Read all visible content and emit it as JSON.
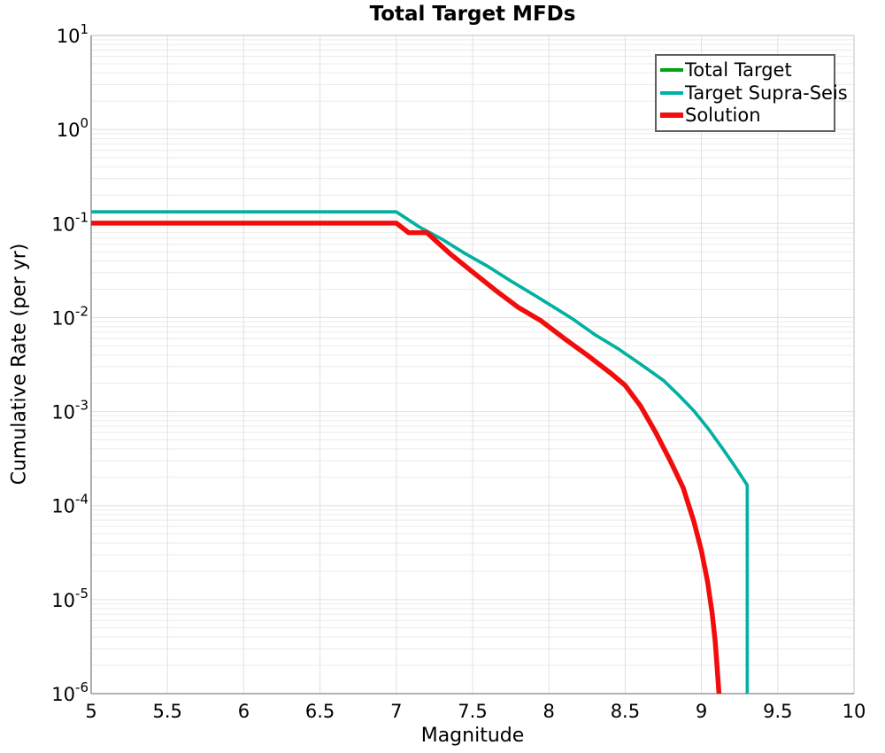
{
  "figure": {
    "title": "Total Target MFDs",
    "xlabel": "Magnitude",
    "ylabel": "Cumulative Rate (per yr)"
  },
  "axes": {
    "x_tick_values": [
      5,
      5.5,
      6,
      6.5,
      7,
      7.5,
      8,
      8.5,
      9,
      9.5,
      10
    ],
    "x_tick_labels": [
      "5",
      "5.5",
      "6",
      "6.5",
      "7",
      "7.5",
      "8",
      "8.5",
      "9",
      "9.5",
      "10"
    ],
    "y_tick_base": "10",
    "y_tick_exponents": [
      "1",
      "0",
      "-1",
      "-2",
      "-3",
      "-4",
      "-5",
      "-6"
    ],
    "x_range": [
      5,
      10
    ],
    "y_range": [
      1e-06,
      10
    ]
  },
  "legend": {
    "items": [
      {
        "label": "Total Target",
        "color": "#00a513",
        "swatch_height": 4
      },
      {
        "label": "Target Supra-Seis",
        "color": "#00b1a7",
        "swatch_height": 4
      },
      {
        "label": "Solution",
        "color": "#f20c0c",
        "swatch_height": 6
      }
    ]
  },
  "colors": {
    "grid_minor": "#ebebeb",
    "grid_major": "#e0e0e0",
    "spine_main": "#9a9a9a",
    "spine_light": "#cccccc",
    "text": "#000000"
  },
  "chart_data": {
    "type": "line",
    "title": "Total Target MFDs",
    "xlabel": "Magnitude",
    "ylabel": "Cumulative Rate (per yr)",
    "x_scale": "linear",
    "y_scale": "log",
    "xlim": [
      5,
      10
    ],
    "ylim": [
      1e-06,
      10
    ],
    "grid": "both axes, light gray, major and minor log gridlines",
    "legend_position": "upper right",
    "series": [
      {
        "name": "Total Target",
        "color": "#00a513",
        "line_width": 3.5,
        "note": "identical to Target Supra-Seis curve, hidden beneath it",
        "points": [
          [
            5.0,
            0.133
          ],
          [
            7.0,
            0.133
          ],
          [
            7.15,
            0.092
          ],
          [
            7.3,
            0.068
          ],
          [
            7.45,
            0.048
          ],
          [
            7.6,
            0.035
          ],
          [
            7.75,
            0.0245
          ],
          [
            7.9,
            0.0175
          ],
          [
            8.0,
            0.0139
          ],
          [
            8.15,
            0.0098
          ],
          [
            8.3,
            0.0066
          ],
          [
            8.45,
            0.0047
          ],
          [
            8.6,
            0.0032
          ],
          [
            8.75,
            0.00215
          ],
          [
            8.85,
            0.0015
          ],
          [
            8.95,
            0.00102
          ],
          [
            9.05,
            0.00064
          ],
          [
            9.15,
            0.00038
          ],
          [
            9.22,
            0.00026
          ],
          [
            9.28,
            0.000185
          ],
          [
            9.3,
            0.000165
          ],
          [
            9.3,
            1e-06
          ]
        ]
      },
      {
        "name": "Target Supra-Seis",
        "color": "#00b1a7",
        "line_width": 3.5,
        "points": [
          [
            5.0,
            0.133
          ],
          [
            7.0,
            0.133
          ],
          [
            7.15,
            0.092
          ],
          [
            7.3,
            0.068
          ],
          [
            7.45,
            0.048
          ],
          [
            7.6,
            0.035
          ],
          [
            7.75,
            0.0245
          ],
          [
            7.9,
            0.0175
          ],
          [
            8.0,
            0.0139
          ],
          [
            8.15,
            0.0098
          ],
          [
            8.3,
            0.0066
          ],
          [
            8.45,
            0.0047
          ],
          [
            8.6,
            0.0032
          ],
          [
            8.75,
            0.00215
          ],
          [
            8.85,
            0.0015
          ],
          [
            8.95,
            0.00102
          ],
          [
            9.05,
            0.00064
          ],
          [
            9.15,
            0.00038
          ],
          [
            9.22,
            0.00026
          ],
          [
            9.28,
            0.000185
          ],
          [
            9.3,
            0.000165
          ],
          [
            9.3,
            1e-06
          ]
        ]
      },
      {
        "name": "Solution",
        "color": "#f20c0c",
        "line_width": 5.5,
        "points": [
          [
            5.0,
            0.101
          ],
          [
            7.0,
            0.101
          ],
          [
            7.08,
            0.08
          ],
          [
            7.2,
            0.08
          ],
          [
            7.35,
            0.048
          ],
          [
            7.5,
            0.0305
          ],
          [
            7.65,
            0.0195
          ],
          [
            7.8,
            0.0128
          ],
          [
            7.95,
            0.0092
          ],
          [
            8.1,
            0.006
          ],
          [
            8.25,
            0.004
          ],
          [
            8.4,
            0.0026
          ],
          [
            8.5,
            0.0019
          ],
          [
            8.6,
            0.00115
          ],
          [
            8.7,
            0.0006
          ],
          [
            8.8,
            0.00029
          ],
          [
            8.88,
            0.000155
          ],
          [
            8.95,
            6.8e-05
          ],
          [
            9.0,
            3.3e-05
          ],
          [
            9.04,
            1.55e-05
          ],
          [
            9.07,
            7.2e-06
          ],
          [
            9.09,
            3.6e-06
          ],
          [
            9.1,
            2.2e-06
          ],
          [
            9.11,
            1.3e-06
          ],
          [
            9.115,
            1e-06
          ]
        ]
      }
    ]
  }
}
